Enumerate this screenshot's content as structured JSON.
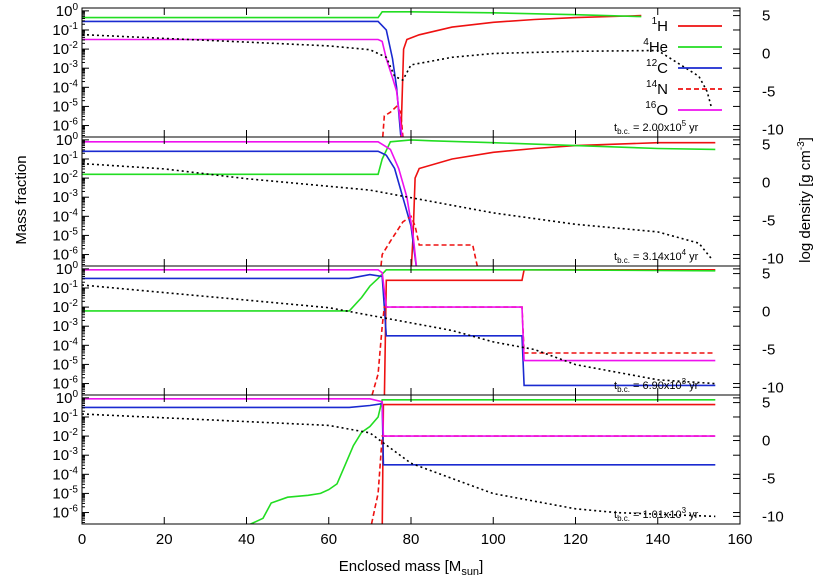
{
  "chart_data": {
    "type": "line",
    "xlabel": "Enclosed mass [M",
    "xlabel_sub": "sun",
    "xlabel_close": "]",
    "ylabel_left": "Mass fraction",
    "ylabel_right": "log density [g cm",
    "ylabel_right_sup": "-3",
    "ylabel_right_close": "]",
    "xlim": [
      0,
      160
    ],
    "x_ticks": [
      "0",
      "20",
      "40",
      "60",
      "80",
      "100",
      "120",
      "140",
      "160"
    ],
    "y_left_scale": "log",
    "y_left_ticks": [
      {
        "base": "10",
        "exp": "0"
      },
      {
        "base": "10",
        "exp": "-1"
      },
      {
        "base": "10",
        "exp": "-2"
      },
      {
        "base": "10",
        "exp": "-3"
      },
      {
        "base": "10",
        "exp": "-4"
      },
      {
        "base": "10",
        "exp": "-5"
      },
      {
        "base": "10",
        "exp": "-6"
      }
    ],
    "y_right_ticks": [
      "5",
      "0",
      "-5",
      "-10"
    ],
    "grid": false,
    "legend_position": "top-right",
    "legend": [
      {
        "sup": "1",
        "name": "H",
        "color": "#ee1111",
        "dash": "solid"
      },
      {
        "sup": "4",
        "name": "He",
        "color": "#22dd22",
        "dash": "solid"
      },
      {
        "sup": "12",
        "name": "C",
        "color": "#1a2ad0",
        "dash": "solid"
      },
      {
        "sup": "14",
        "name": "N",
        "color": "#ee1111",
        "dash": "dashed"
      },
      {
        "sup": "16",
        "name": "O",
        "color": "#ee11ee",
        "dash": "solid"
      }
    ],
    "panels": [
      {
        "time_label": {
          "pre": "t",
          "sub": "b.c.",
          "mid": " = 2.00x10",
          "sup": "5",
          "post": " yr"
        },
        "series": [
          {
            "name": "H",
            "points": [
              [
                77.5,
                -7
              ],
              [
                78.2,
                -2
              ],
              [
                79,
                -1.5
              ],
              [
                82,
                -1.25
              ],
              [
                90,
                -0.85
              ],
              [
                100,
                -0.6
              ],
              [
                110,
                -0.45
              ],
              [
                120,
                -0.35
              ],
              [
                136,
                -0.25
              ]
            ]
          },
          {
            "name": "He",
            "points": [
              [
                0,
                -0.35
              ],
              [
                72,
                -0.35
              ],
              [
                73,
                -0.05
              ],
              [
                80,
                -0.05
              ],
              [
                100,
                -0.1
              ],
              [
                120,
                -0.2
              ],
              [
                136,
                -0.3
              ]
            ]
          },
          {
            "name": "C",
            "points": [
              [
                0,
                -0.55
              ],
              [
                72,
                -0.55
              ],
              [
                74,
                -1.0
              ],
              [
                75.5,
                -2.5
              ],
              [
                76.5,
                -4
              ],
              [
                77.5,
                -6.5
              ]
            ]
          },
          {
            "name": "N",
            "points": [
              [
                73,
                -7
              ],
              [
                73.5,
                -5.5
              ],
              [
                75,
                -5.3
              ],
              [
                76.5,
                -5.0
              ],
              [
                77.5,
                -5.3
              ],
              [
                78.2,
                -7
              ]
            ]
          },
          {
            "name": "O",
            "points": [
              [
                0,
                -1.5
              ],
              [
                72,
                -1.5
              ],
              [
                73,
                -1.6
              ],
              [
                74,
                -2.5
              ],
              [
                75.5,
                -3.5
              ],
              [
                76.5,
                -4.2
              ],
              [
                77.5,
                -6
              ],
              [
                78,
                -7
              ]
            ]
          }
        ],
        "density": [
          [
            0,
            2.5
          ],
          [
            20,
            2.0
          ],
          [
            40,
            1.5
          ],
          [
            60,
            1.0
          ],
          [
            70,
            0.5
          ],
          [
            74,
            -0.5
          ],
          [
            76,
            -3
          ],
          [
            78,
            -3.5
          ],
          [
            80,
            -1.5
          ],
          [
            90,
            -0.5
          ],
          [
            100,
            0
          ],
          [
            120,
            0.3
          ],
          [
            140,
            0.4
          ],
          [
            150,
            -3
          ],
          [
            152,
            -5
          ],
          [
            153,
            -7
          ]
        ]
      },
      {
        "time_label": {
          "pre": "t",
          "sub": "b.c.",
          "mid": " = 3.14x10",
          "sup": "4",
          "post": " yr"
        },
        "series": [
          {
            "name": "H",
            "points": [
              [
                80,
                -7
              ],
              [
                80.5,
                -5
              ],
              [
                81,
                -2
              ],
              [
                82,
                -1.5
              ],
              [
                90,
                -1.0
              ],
              [
                100,
                -0.65
              ],
              [
                110,
                -0.45
              ],
              [
                120,
                -0.3
              ],
              [
                140,
                -0.15
              ],
              [
                154,
                -0.15
              ]
            ]
          },
          {
            "name": "He",
            "points": [
              [
                0,
                -1.8
              ],
              [
                72,
                -1.8
              ],
              [
                73,
                -1.0
              ],
              [
                75,
                -0.1
              ],
              [
                80,
                0
              ],
              [
                85,
                -0.05
              ],
              [
                100,
                -0.15
              ],
              [
                120,
                -0.3
              ],
              [
                140,
                -0.45
              ],
              [
                154,
                -0.5
              ]
            ]
          },
          {
            "name": "C",
            "points": [
              [
                0,
                -0.6
              ],
              [
                72,
                -0.6
              ],
              [
                74,
                -0.8
              ],
              [
                76,
                -1.5
              ],
              [
                78,
                -3
              ],
              [
                80,
                -4.5
              ],
              [
                81.5,
                -7
              ]
            ]
          },
          {
            "name": "N",
            "points": [
              [
                72.5,
                -7
              ],
              [
                73,
                -6
              ],
              [
                75,
                -5.3
              ],
              [
                78,
                -4.3
              ],
              [
                80,
                -4.0
              ],
              [
                81,
                -4.5
              ],
              [
                82,
                -5.5
              ],
              [
                95,
                -5.5
              ],
              [
                96.5,
                -7
              ]
            ]
          },
          {
            "name": "O",
            "points": [
              [
                0,
                -0.1
              ],
              [
                72,
                -0.1
              ],
              [
                75,
                -0.5
              ],
              [
                77,
                -1.5
              ],
              [
                79,
                -3
              ],
              [
                80.5,
                -5
              ],
              [
                81.5,
                -7
              ]
            ]
          }
        ],
        "density": [
          [
            0,
            2.5
          ],
          [
            20,
            1.8
          ],
          [
            40,
            0.5
          ],
          [
            60,
            -0.5
          ],
          [
            70,
            -1
          ],
          [
            80,
            -2
          ],
          [
            90,
            -3
          ],
          [
            100,
            -4
          ],
          [
            120,
            -5.5
          ],
          [
            140,
            -6.5
          ],
          [
            150,
            -8
          ],
          [
            153,
            -10
          ]
        ]
      },
      {
        "time_label": {
          "pre": "t",
          "sub": "b.c.",
          "mid": " = 6.90x10",
          "sup": "3",
          "post": " yr"
        },
        "series": [
          {
            "name": "H",
            "points": [
              [
                73.5,
                -7
              ],
              [
                74,
                -0.6
              ],
              [
                107,
                -0.6
              ],
              [
                107.5,
                -0.05
              ],
              [
                154,
                -0.05
              ]
            ]
          },
          {
            "name": "He",
            "points": [
              [
                0,
                -2.2
              ],
              [
                65,
                -2.2
              ],
              [
                68,
                -1.5
              ],
              [
                70,
                -0.9
              ],
              [
                72,
                -0.5
              ],
              [
                74,
                -0.05
              ],
              [
                107,
                -0.05
              ],
              [
                107.5,
                -0.05
              ],
              [
                154,
                -0.1
              ]
            ]
          },
          {
            "name": "C",
            "points": [
              [
                0,
                -0.5
              ],
              [
                65,
                -0.5
              ],
              [
                70,
                -0.3
              ],
              [
                73,
                -0.4
              ],
              [
                74,
                -3.5
              ],
              [
                107,
                -3.5
              ],
              [
                107.5,
                -6.1
              ],
              [
                154,
                -6.1
              ]
            ]
          },
          {
            "name": "N",
            "points": [
              [
                70,
                -7
              ],
              [
                72,
                -5.5
              ],
              [
                73,
                -3
              ],
              [
                73.5,
                -2.0
              ],
              [
                107,
                -2.0
              ],
              [
                107.5,
                -4.4
              ],
              [
                154,
                -4.4
              ]
            ]
          },
          {
            "name": "O",
            "points": [
              [
                0,
                -0.05
              ],
              [
                72,
                -0.05
              ],
              [
                73,
                -0.2
              ],
              [
                74,
                -2.0
              ],
              [
                107,
                -2.0
              ],
              [
                107.5,
                -4.8
              ],
              [
                154,
                -4.8
              ]
            ]
          }
        ],
        "density": [
          [
            0,
            3.5
          ],
          [
            20,
            2.5
          ],
          [
            40,
            1.5
          ],
          [
            60,
            0.5
          ],
          [
            70,
            -0.5
          ],
          [
            80,
            -1.5
          ],
          [
            90,
            -2.5
          ],
          [
            100,
            -4
          ],
          [
            110,
            -5
          ],
          [
            120,
            -7
          ],
          [
            140,
            -9
          ],
          [
            154,
            -9.5
          ]
        ]
      },
      {
        "time_label": {
          "pre": "t",
          "sub": "b.c.",
          "mid": " = 1.01x10",
          "sup": "3",
          "post": " yr"
        },
        "series": [
          {
            "name": "H",
            "points": [
              [
                72,
                -7
              ],
              [
                73,
                -7
              ],
              [
                73.3,
                -0.35
              ],
              [
                154,
                -0.35
              ]
            ]
          },
          {
            "name": "He",
            "points": [
              [
                37,
                -7
              ],
              [
                40,
                -6.7
              ],
              [
                44,
                -6.3
              ],
              [
                46,
                -5.5
              ],
              [
                50,
                -5.2
              ],
              [
                55,
                -5.1
              ],
              [
                58,
                -5.0
              ],
              [
                60,
                -4.8
              ],
              [
                62,
                -4.5
              ],
              [
                64,
                -3.5
              ],
              [
                66,
                -2.5
              ],
              [
                68,
                -1.8
              ],
              [
                70,
                -1.5
              ],
              [
                72,
                -1.0
              ],
              [
                73,
                -0.1
              ],
              [
                154,
                -0.1
              ]
            ]
          },
          {
            "name": "C",
            "points": [
              [
                0,
                -0.5
              ],
              [
                65,
                -0.5
              ],
              [
                70,
                -0.4
              ],
              [
                73,
                -0.3
              ],
              [
                73.3,
                -3.5
              ],
              [
                154,
                -3.5
              ]
            ]
          },
          {
            "name": "N",
            "points": [
              [
                70,
                -7
              ],
              [
                72,
                -5
              ],
              [
                73,
                -2.0
              ],
              [
                154,
                -2.0
              ]
            ]
          },
          {
            "name": "O",
            "points": [
              [
                0,
                -0.05
              ],
              [
                70,
                -0.05
              ],
              [
                73,
                -0.2
              ],
              [
                73.3,
                -2.0
              ],
              [
                154,
                -2.0
              ]
            ]
          }
        ],
        "density": [
          [
            0,
            3.5
          ],
          [
            20,
            3.0
          ],
          [
            40,
            2.5
          ],
          [
            60,
            2.0
          ],
          [
            70,
            1.0
          ],
          [
            75,
            -1
          ],
          [
            80,
            -3
          ],
          [
            90,
            -5
          ],
          [
            100,
            -7
          ],
          [
            110,
            -8
          ],
          [
            120,
            -9
          ],
          [
            130,
            -9.5
          ],
          [
            154,
            -10
          ]
        ]
      }
    ]
  }
}
